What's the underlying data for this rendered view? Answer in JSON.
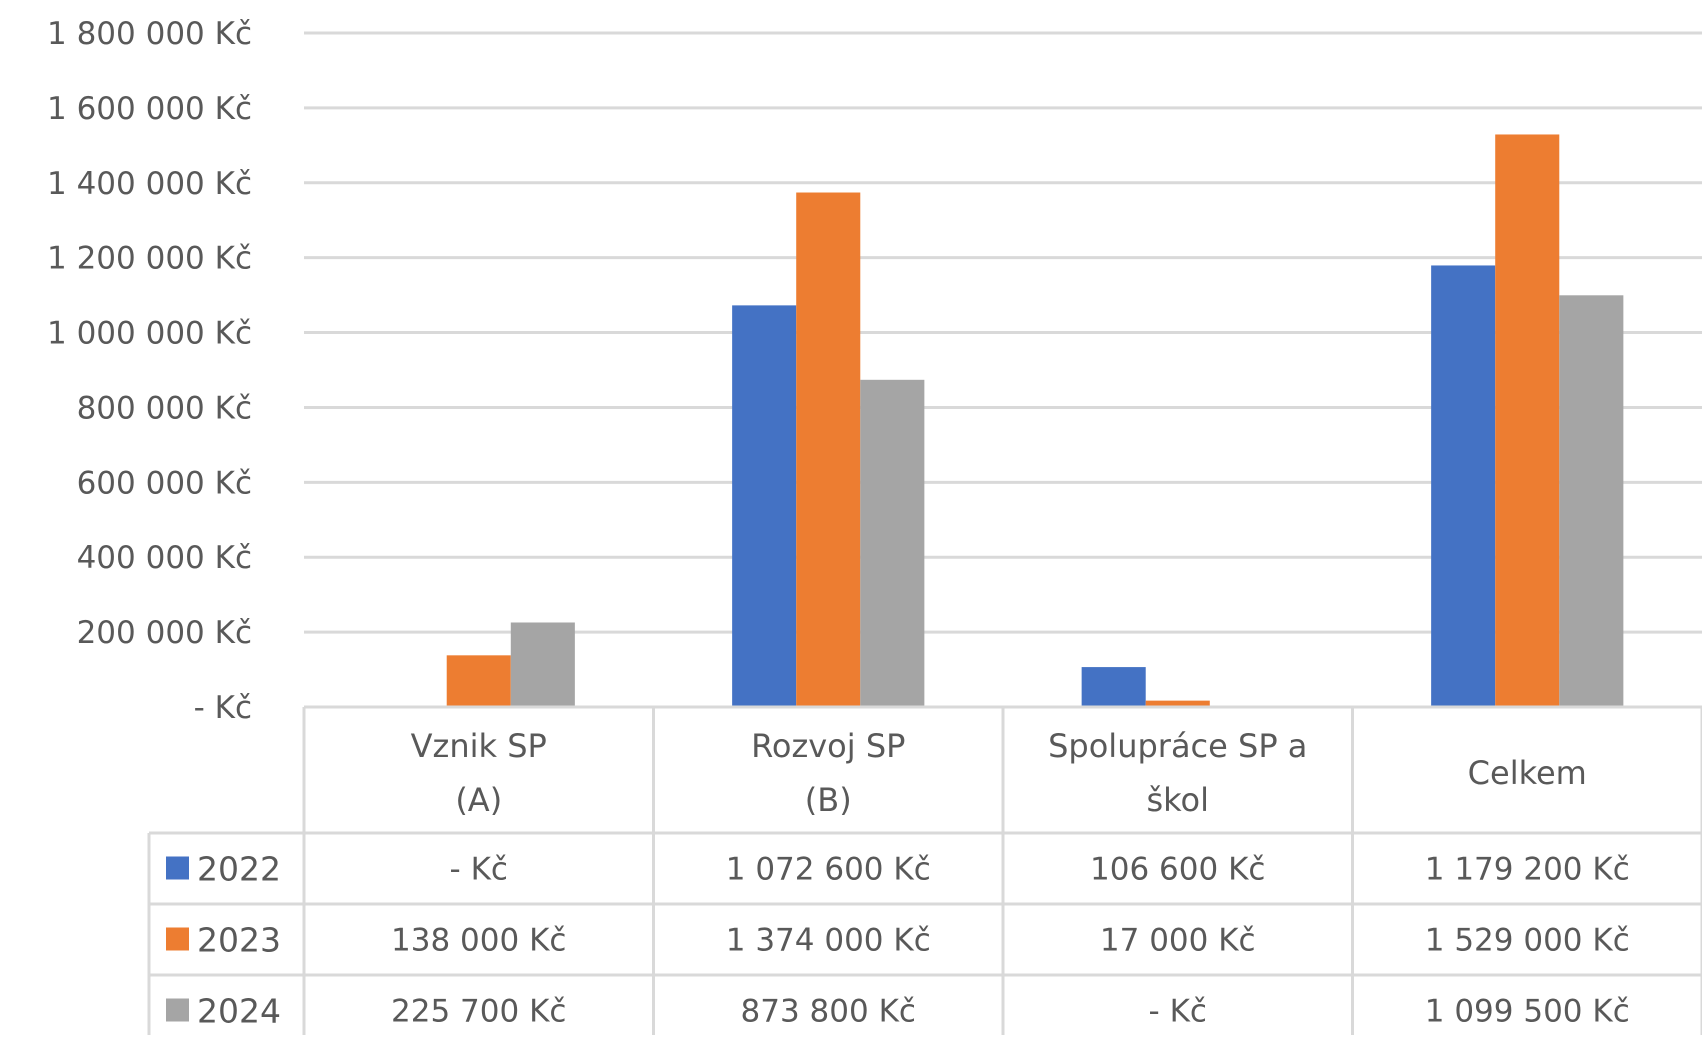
{
  "chart_data": {
    "type": "bar",
    "categories": [
      [
        "Vznik SP",
        "(A)"
      ],
      [
        "Rozvoj SP",
        "(B)"
      ],
      [
        "Spolupráce SP a",
        "škol"
      ],
      [
        "Celkem"
      ]
    ],
    "series": [
      {
        "name": "2022",
        "color": "#4472C4",
        "values": [
          0,
          1072600,
          106600,
          1179200
        ],
        "labels": [
          "- Kč",
          "1 072 600 Kč",
          "106 600 Kč",
          "1 179 200 Kč"
        ]
      },
      {
        "name": "2023",
        "color": "#ED7D31",
        "values": [
          138000,
          1374000,
          17000,
          1529000
        ],
        "labels": [
          "138 000 Kč",
          "1 374 000 Kč",
          "17 000 Kč",
          "1 529 000 Kč"
        ]
      },
      {
        "name": "2024",
        "color": "#A5A5A5",
        "values": [
          225700,
          873800,
          0,
          1099500
        ],
        "labels": [
          "225 700 Kč",
          "873 800 Kč",
          "- Kč",
          "1 099 500 Kč"
        ]
      }
    ],
    "ylim": [
      0,
      1800000
    ],
    "y_ticks": [
      {
        "value": 0,
        "label": "- Kč"
      },
      {
        "value": 200000,
        "label": "200 000 Kč"
      },
      {
        "value": 400000,
        "label": "400 000 Kč"
      },
      {
        "value": 600000,
        "label": "600 000 Kč"
      },
      {
        "value": 800000,
        "label": "800 000 Kč"
      },
      {
        "value": 1000000,
        "label": "1 000 000 Kč"
      },
      {
        "value": 1200000,
        "label": "1 200 000 Kč"
      },
      {
        "value": 1400000,
        "label": "1 400 000 Kč"
      },
      {
        "value": 1600000,
        "label": "1 600 000 Kč"
      },
      {
        "value": 1800000,
        "label": "1 800 000 Kč"
      }
    ],
    "grid": true,
    "legend": "data-table-left",
    "title": "",
    "xlabel": "",
    "ylabel": ""
  }
}
